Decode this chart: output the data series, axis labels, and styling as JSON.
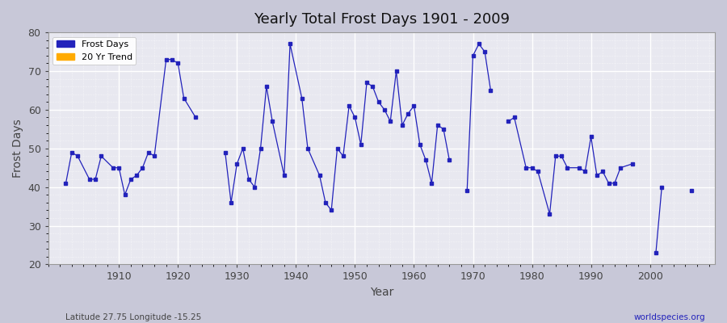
{
  "title": "Yearly Total Frost Days 1901 - 2009",
  "xlabel": "Year",
  "ylabel": "Frost Days",
  "bottom_left_label": "Latitude 27.75 Longitude -15.25",
  "bottom_right_label": "worldspecies.org",
  "legend_entries": [
    "Frost Days",
    "20 Yr Trend"
  ],
  "legend_colors": [
    "#2222bb",
    "#ffaa00"
  ],
  "line_color": "#2222bb",
  "marker_color": "#2222bb",
  "fig_bg": "#c8c8d8",
  "plot_bg": "#e8e8f0",
  "ylim": [
    20,
    80
  ],
  "xlim": [
    1898,
    2011
  ],
  "yticks": [
    20,
    30,
    40,
    50,
    60,
    70,
    80
  ],
  "xticks": [
    1910,
    1920,
    1930,
    1940,
    1950,
    1960,
    1970,
    1980,
    1990,
    2000
  ],
  "years": [
    1901,
    1902,
    1903,
    1905,
    1906,
    1907,
    1909,
    1910,
    1911,
    1912,
    1913,
    1914,
    1915,
    1916,
    1918,
    1919,
    1920,
    1921,
    1923,
    1928,
    1929,
    1930,
    1931,
    1932,
    1933,
    1934,
    1935,
    1936,
    1938,
    1939,
    1941,
    1942,
    1944,
    1945,
    1946,
    1947,
    1948,
    1949,
    1950,
    1951,
    1952,
    1953,
    1954,
    1955,
    1956,
    1957,
    1958,
    1959,
    1960,
    1961,
    1962,
    1963,
    1964,
    1965,
    1966,
    1969,
    1970,
    1971,
    1972,
    1973,
    1976,
    1977,
    1979,
    1980,
    1981,
    1983,
    1984,
    1985,
    1986,
    1988,
    1989,
    1990,
    1991,
    1992,
    1993,
    1994,
    1995,
    1997,
    2001,
    2002,
    2007
  ],
  "frost_days": [
    41,
    49,
    48,
    42,
    42,
    48,
    45,
    45,
    38,
    42,
    43,
    45,
    49,
    48,
    73,
    73,
    72,
    63,
    58,
    49,
    36,
    46,
    50,
    42,
    40,
    50,
    66,
    57,
    43,
    77,
    63,
    50,
    43,
    36,
    34,
    50,
    48,
    61,
    58,
    51,
    67,
    66,
    62,
    60,
    57,
    70,
    56,
    59,
    61,
    51,
    47,
    41,
    56,
    55,
    47,
    39,
    74,
    77,
    75,
    65,
    57,
    58,
    45,
    45,
    44,
    33,
    48,
    48,
    45,
    45,
    44,
    53,
    43,
    44,
    41,
    41,
    45,
    46,
    23,
    40,
    39
  ]
}
